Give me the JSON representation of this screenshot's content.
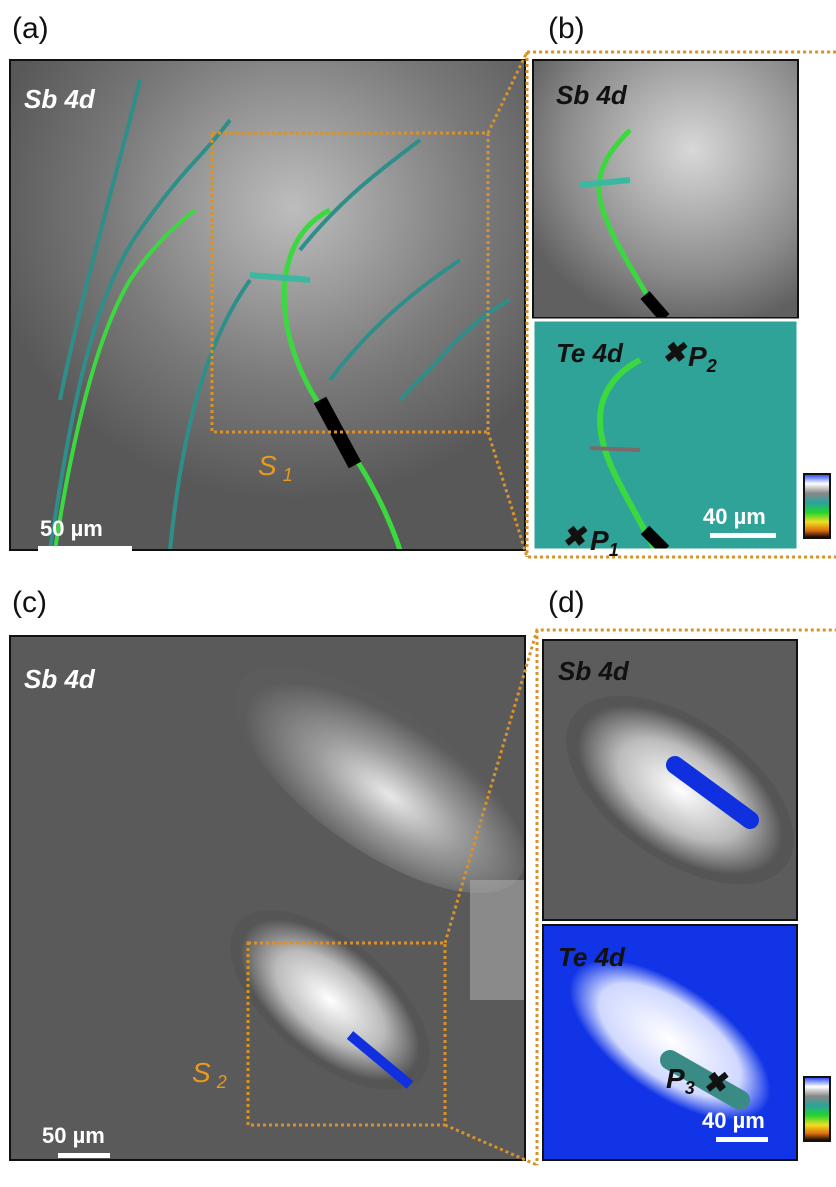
{
  "panels": {
    "a": {
      "label": "(a)",
      "element": "Sb 4d",
      "scale_bar": "50 µm",
      "region": {
        "letter": "S",
        "sub": "1"
      }
    },
    "b": {
      "label": "(b)",
      "top": {
        "element": "Sb 4d"
      },
      "bottom": {
        "element": "Te 4d",
        "scale_bar": "40 µm",
        "points": [
          {
            "letter": "P",
            "sub": "2"
          },
          {
            "letter": "P",
            "sub": "1"
          }
        ]
      }
    },
    "c": {
      "label": "(c)",
      "element": "Sb 4d",
      "scale_bar": "50 µm",
      "region": {
        "letter": "S",
        "sub": "2"
      }
    },
    "d": {
      "label": "(d)",
      "top": {
        "element": "Sb 4d"
      },
      "bottom": {
        "element": "Te 4d",
        "scale_bar": "40 µm",
        "points": [
          {
            "letter": "P",
            "sub": "3"
          }
        ]
      }
    }
  }
}
